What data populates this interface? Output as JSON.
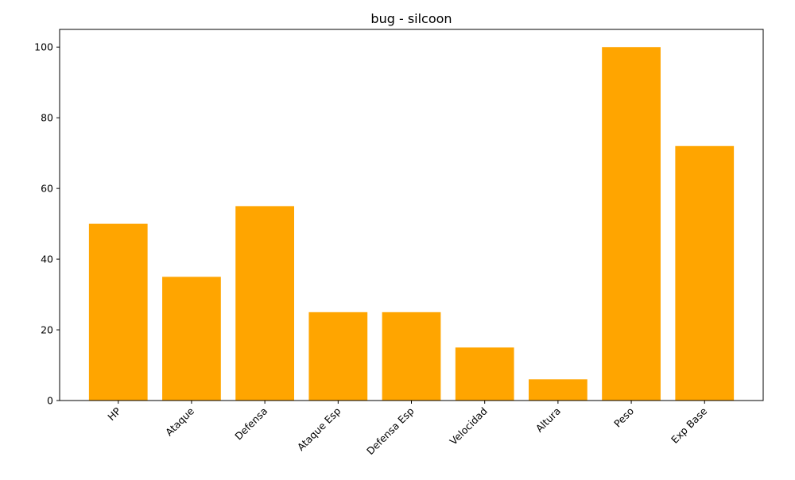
{
  "chart_data": {
    "type": "bar",
    "title": "bug - silcoon",
    "xlabel": "",
    "ylabel": "",
    "categories": [
      "HP",
      "Ataque",
      "Defensa",
      "Ataque Esp",
      "Defensa Esp",
      "Velocidad",
      "Altura",
      "Peso",
      "Exp Base"
    ],
    "values": [
      50,
      35,
      55,
      25,
      25,
      15,
      6,
      100,
      72
    ],
    "ylim": [
      0,
      105
    ],
    "yticks": [
      0,
      20,
      40,
      60,
      80,
      100
    ],
    "bar_color": "#FFA500",
    "grid": false,
    "legend": "none"
  }
}
